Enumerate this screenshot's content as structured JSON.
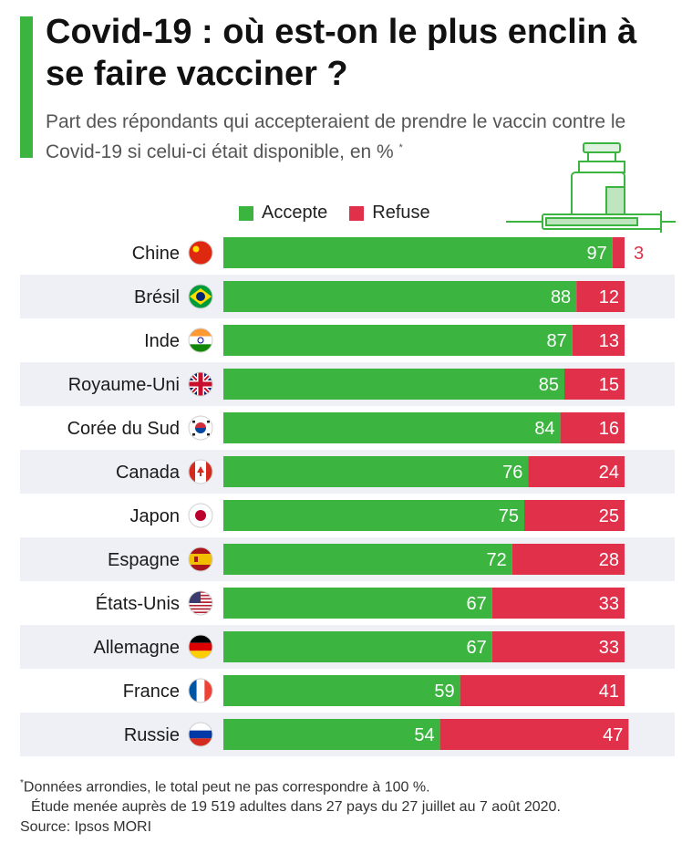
{
  "header": {
    "title": "Covid-19 : où est-on le plus enclin à se faire vacciner ?",
    "subtitle": "Part des répondants qui accepteraient de prendre le vaccin contre le Covid-19 si celui-ci était disponible, en %",
    "subtitle_mark": "*"
  },
  "colors": {
    "accept": "#3cb440",
    "refuse": "#e0304a",
    "row_band": "#eef0f6",
    "accent": "#3cb440"
  },
  "legend": {
    "accept_label": "Accepte",
    "refuse_label": "Refuse"
  },
  "chart_data": {
    "type": "bar",
    "orientation": "horizontal",
    "stacked": true,
    "xlim": [
      0,
      100
    ],
    "categories": [
      "Chine",
      "Brésil",
      "Inde",
      "Royaume-Uni",
      "Corée du Sud",
      "Canada",
      "Japon",
      "Espagne",
      "États-Unis",
      "Allemagne",
      "France",
      "Russie"
    ],
    "flags": [
      "china-flag-icon",
      "brazil-flag-icon",
      "india-flag-icon",
      "uk-flag-icon",
      "south-korea-flag-icon",
      "canada-flag-icon",
      "japan-flag-icon",
      "spain-flag-icon",
      "usa-flag-icon",
      "germany-flag-icon",
      "france-flag-icon",
      "russia-flag-icon"
    ],
    "series": [
      {
        "name": "Accepte",
        "values": [
          97,
          88,
          87,
          85,
          84,
          76,
          75,
          72,
          67,
          67,
          59,
          54
        ]
      },
      {
        "name": "Refuse",
        "values": [
          3,
          12,
          13,
          15,
          16,
          24,
          25,
          28,
          33,
          33,
          41,
          47
        ]
      }
    ],
    "legend_position": "top",
    "grid": false
  },
  "footer": {
    "note_mark": "*",
    "note1": "Données arrondies, le total peut ne pas correspondre à 100 %.",
    "note2": "Étude menée auprès de 19 519 adultes dans 27 pays du 27 juillet au 7 août 2020.",
    "source": "Source: Ipsos MORI"
  }
}
